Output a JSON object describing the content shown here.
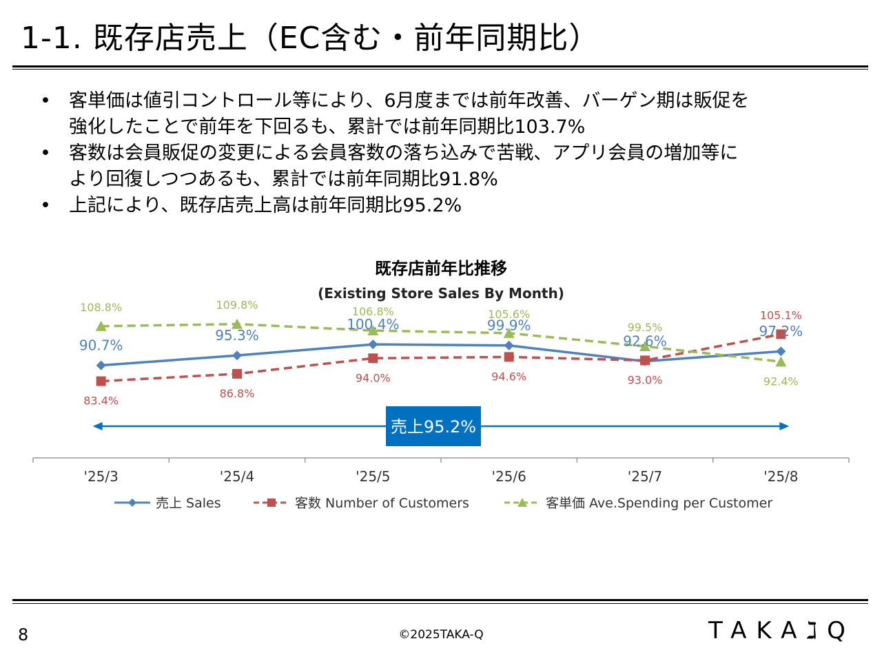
{
  "slide": {
    "title": "1-1. 既存店売上（EC含む・前年同期比）",
    "bullets": [
      {
        "line1": "客単価は値引コントロール等により、6月度までは前年改善、バーゲン期は販促を",
        "line2": "強化したことで前年を下回るも、累計では前年同期比103.7%"
      },
      {
        "line1": "客数は会員販促の変更による会員客数の落ち込みで苦戦、アプリ会員の増加等に",
        "line2": "より回復しつつあるも、累計では前年同期比91.8%"
      },
      {
        "line1": "上記により、既存店売上高は前年同期比95.2%",
        "line2": ""
      }
    ],
    "bullet_glyph": "•",
    "page_number": "8",
    "copyright": "©2025TAKA-Q",
    "logo_text": "TAKA-Q"
  },
  "chart_data": {
    "type": "line",
    "title": "既存店前年比推移",
    "subtitle": "(Existing Store Sales By  Month)",
    "categories": [
      "'25/3",
      "'25/4",
      "'25/5",
      "'25/6",
      "'25/7",
      "'25/8"
    ],
    "series": [
      {
        "name": "売上 Sales",
        "values": [
          90.7,
          95.3,
          100.4,
          99.9,
          92.6,
          97.2
        ],
        "labels": [
          "90.7%",
          "95.3%",
          "100.4%",
          "99.9%",
          "92.6%",
          "97.2%"
        ],
        "color": "#4f81bd",
        "dash": "solid",
        "marker": "diamond"
      },
      {
        "name": "客数 Number of Customers",
        "values": [
          83.4,
          86.8,
          94.0,
          94.6,
          93.0,
          105.1
        ],
        "labels": [
          "83.4%",
          "86.8%",
          "94.0%",
          "94.6%",
          "93.0%",
          "105.1%"
        ],
        "color": "#c0504d",
        "dash": "dashed",
        "marker": "square"
      },
      {
        "name": "客単価 Ave.Spending per Customer",
        "values": [
          108.8,
          109.8,
          106.8,
          105.6,
          99.5,
          92.4
        ],
        "labels": [
          "108.8%",
          "109.8%",
          "106.8%",
          "105.6%",
          "99.5%",
          "92.4%"
        ],
        "color": "#9bbb59",
        "dash": "dashed",
        "marker": "triangle"
      }
    ],
    "annotation": {
      "text": "売上95.2%",
      "color": "#0070c0"
    },
    "legend_position": "bottom"
  }
}
